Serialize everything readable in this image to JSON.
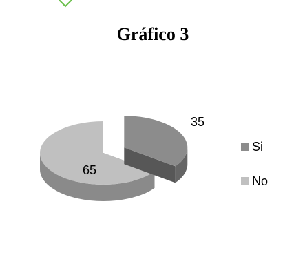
{
  "chart_data": {
    "type": "pie",
    "title": "Gráfico 3",
    "categories": [
      "Si",
      "No"
    ],
    "values": [
      35,
      65
    ],
    "colors": [
      "#8c8c8c",
      "#c0c0c0"
    ],
    "explode": [
      true,
      false
    ],
    "legend": "right"
  }
}
